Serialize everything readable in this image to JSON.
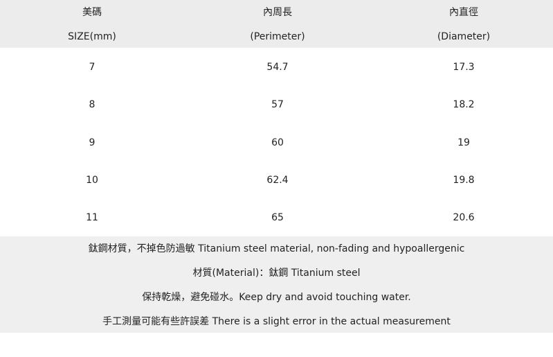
{
  "header": {
    "columns": [
      {
        "zh": "美碼",
        "en": "SIZE(mm)"
      },
      {
        "zh": "內周長",
        "en": "(Perimeter)"
      },
      {
        "zh": "內直徑",
        "en": "(Diameter)"
      }
    ]
  },
  "rows": [
    [
      "7",
      "54.7",
      "17.3"
    ],
    [
      "8",
      "57",
      "18.2"
    ],
    [
      "9",
      "60",
      "19"
    ],
    [
      "10",
      "62.4",
      "19.8"
    ],
    [
      "11",
      "65",
      "20.6"
    ]
  ],
  "notes": [
    "鈦鋼材質，不掉色防過敏  Titanium steel material, non-fading and hypoallergenic",
    "材質(Material)：鈦鋼  Titanium steel",
    "保持乾燥，避免碰水。Keep dry and avoid touching water.",
    "手工測量可能有些許誤差  There is a slight error in the actual measurement"
  ]
}
